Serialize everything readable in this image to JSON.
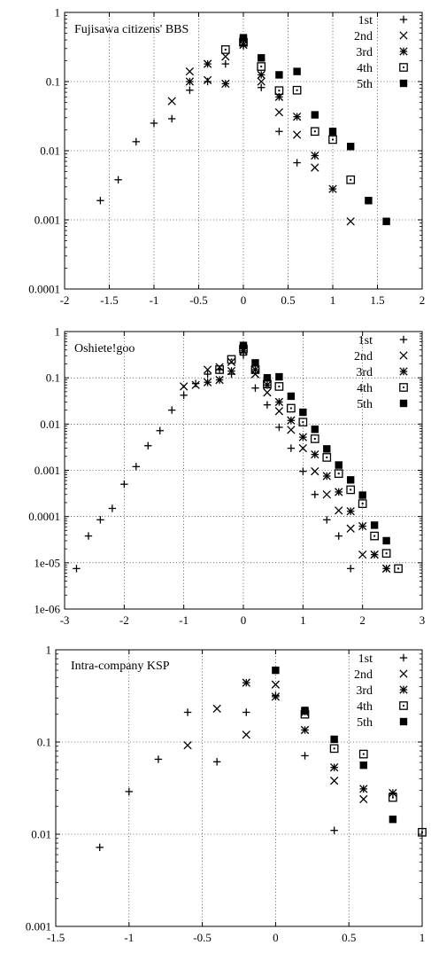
{
  "chart_data": [
    {
      "type": "scatter",
      "title": "Fujisawa citizens' BBS",
      "xlim": [
        -2,
        2
      ],
      "ylim": [
        0.0001,
        1
      ],
      "yscale": "log",
      "grid": true,
      "legend_position": "top-right",
      "xticks": [
        "-2",
        "-1.5",
        "-1",
        "-0.5",
        "0",
        "0.5",
        "1",
        "1.5",
        "2"
      ],
      "yticks": [
        "1",
        "0.1",
        "0.01",
        "0.001",
        "0.0001"
      ],
      "series": [
        {
          "name": "1st",
          "marker": "plus",
          "points": [
            [
              -1.6,
              0.0019
            ],
            [
              -1.4,
              0.0038
            ],
            [
              -1.2,
              0.0135
            ],
            [
              -1.0,
              0.025
            ],
            [
              -0.8,
              0.029
            ],
            [
              -0.6,
              0.075
            ],
            [
              -0.4,
              0.1
            ],
            [
              -0.2,
              0.18
            ],
            [
              0.0,
              0.33
            ],
            [
              0.2,
              0.082
            ],
            [
              0.4,
              0.019
            ],
            [
              0.6,
              0.0067
            ]
          ]
        },
        {
          "name": "2nd",
          "marker": "cross",
          "points": [
            [
              -0.8,
              0.052
            ],
            [
              -0.6,
              0.14
            ],
            [
              -0.4,
              0.105
            ],
            [
              -0.2,
              0.23
            ],
            [
              0.0,
              0.4
            ],
            [
              0.2,
              0.1
            ],
            [
              0.4,
              0.036
            ],
            [
              0.6,
              0.017
            ],
            [
              0.8,
              0.0057
            ],
            [
              1.2,
              0.00095
            ]
          ]
        },
        {
          "name": "3rd",
          "marker": "star",
          "points": [
            [
              -0.6,
              0.1
            ],
            [
              -0.4,
              0.18
            ],
            [
              -0.2,
              0.093
            ],
            [
              0.0,
              0.34
            ],
            [
              0.2,
              0.125
            ],
            [
              0.4,
              0.06
            ],
            [
              0.6,
              0.031
            ],
            [
              0.8,
              0.0085
            ],
            [
              1.0,
              0.0028
            ]
          ]
        },
        {
          "name": "4th",
          "marker": "box",
          "points": [
            [
              -0.2,
              0.29
            ],
            [
              0.0,
              0.37
            ],
            [
              0.2,
              0.165
            ],
            [
              0.4,
              0.074
            ],
            [
              0.6,
              0.075
            ],
            [
              0.8,
              0.019
            ],
            [
              1.0,
              0.0145
            ],
            [
              1.2,
              0.0038
            ]
          ]
        },
        {
          "name": "5th",
          "marker": "filledbox",
          "points": [
            [
              0.0,
              0.43
            ],
            [
              0.2,
              0.22
            ],
            [
              0.4,
              0.125
            ],
            [
              0.6,
              0.14
            ],
            [
              0.8,
              0.033
            ],
            [
              1.0,
              0.019
            ],
            [
              1.2,
              0.0115
            ],
            [
              1.4,
              0.0019
            ],
            [
              1.6,
              0.00095
            ]
          ]
        }
      ]
    },
    {
      "type": "scatter",
      "title": "Oshiete!goo",
      "xlim": [
        -3,
        3
      ],
      "ylim": [
        1e-06,
        1
      ],
      "yscale": "log",
      "grid": true,
      "legend_position": "top-right",
      "xticks": [
        "-3",
        "-2",
        "-1",
        "0",
        "1",
        "2",
        "3"
      ],
      "yticks": [
        "1",
        "0.1",
        "0.01",
        "0.001",
        "0.0001",
        "1e-05",
        "1e-06"
      ],
      "series": [
        {
          "name": "1st",
          "marker": "plus",
          "points": [
            [
              -2.8,
              7.5e-06
            ],
            [
              -2.6,
              3.8e-05
            ],
            [
              -2.4,
              8.5e-05
            ],
            [
              -2.2,
              0.00015
            ],
            [
              -2.0,
              0.0005
            ],
            [
              -1.8,
              0.0012
            ],
            [
              -1.6,
              0.0034
            ],
            [
              -1.4,
              0.0072
            ],
            [
              -1.2,
              0.02
            ],
            [
              -1.0,
              0.042
            ],
            [
              -0.8,
              0.075
            ],
            [
              -0.6,
              0.12
            ],
            [
              -0.4,
              0.15
            ],
            [
              -0.2,
              0.12
            ],
            [
              0.0,
              0.31
            ],
            [
              0.2,
              0.06
            ],
            [
              0.4,
              0.026
            ],
            [
              0.6,
              0.0085
            ],
            [
              0.8,
              0.003
            ],
            [
              1.0,
              0.00095
            ],
            [
              1.2,
              0.0003
            ],
            [
              1.4,
              8.5e-05
            ],
            [
              1.6,
              3.8e-05
            ],
            [
              1.8,
              7.5e-06
            ]
          ]
        },
        {
          "name": "2nd",
          "marker": "cross",
          "points": [
            [
              -1.0,
              0.065
            ],
            [
              -0.8,
              0.07
            ],
            [
              -0.6,
              0.15
            ],
            [
              -0.4,
              0.17
            ],
            [
              -0.2,
              0.22
            ],
            [
              0.0,
              0.38
            ],
            [
              0.2,
              0.12
            ],
            [
              0.4,
              0.048
            ],
            [
              0.6,
              0.019
            ],
            [
              0.8,
              0.0075
            ],
            [
              1.0,
              0.003
            ],
            [
              1.2,
              0.00095
            ],
            [
              1.4,
              0.0003
            ],
            [
              1.6,
              0.000135
            ],
            [
              1.8,
              5.5e-05
            ],
            [
              2.0,
              1.5e-05
            ],
            [
              2.2,
              1.5e-05
            ],
            [
              2.4,
              7.5e-06
            ]
          ]
        },
        {
          "name": "3rd",
          "marker": "star",
          "points": [
            [
              -0.6,
              0.08
            ],
            [
              -0.4,
              0.09
            ],
            [
              -0.2,
              0.14
            ],
            [
              0.0,
              0.38
            ],
            [
              0.2,
              0.15
            ],
            [
              0.4,
              0.07
            ],
            [
              0.6,
              0.03
            ],
            [
              0.8,
              0.012
            ],
            [
              1.0,
              0.0052
            ],
            [
              1.2,
              0.0022
            ],
            [
              1.4,
              0.00075
            ],
            [
              1.6,
              0.00034
            ],
            [
              1.8,
              0.00013
            ],
            [
              2.0,
              6.2e-05
            ],
            [
              2.2,
              1.5e-05
            ],
            [
              2.4,
              7.5e-06
            ]
          ]
        },
        {
          "name": "4th",
          "marker": "box",
          "points": [
            [
              -0.4,
              0.15
            ],
            [
              -0.2,
              0.25
            ],
            [
              0.0,
              0.42
            ],
            [
              0.2,
              0.15
            ],
            [
              0.4,
              0.073
            ],
            [
              0.6,
              0.065
            ],
            [
              0.8,
              0.022
            ],
            [
              1.0,
              0.011
            ],
            [
              1.2,
              0.0048
            ],
            [
              1.4,
              0.0019
            ],
            [
              1.6,
              0.00085
            ],
            [
              1.8,
              0.00038
            ],
            [
              2.0,
              0.00019
            ],
            [
              2.2,
              3.8e-05
            ],
            [
              2.4,
              1.6e-05
            ],
            [
              2.6,
              7.5e-06
            ]
          ]
        },
        {
          "name": "5th",
          "marker": "filledbox",
          "points": [
            [
              0.0,
              0.5
            ],
            [
              0.2,
              0.21
            ],
            [
              0.4,
              0.1
            ],
            [
              0.6,
              0.105
            ],
            [
              0.8,
              0.04
            ],
            [
              1.0,
              0.018
            ],
            [
              1.2,
              0.0077
            ],
            [
              1.4,
              0.0029
            ],
            [
              1.6,
              0.0013
            ],
            [
              1.8,
              0.00062
            ],
            [
              2.0,
              0.00029
            ],
            [
              2.2,
              6.5e-05
            ],
            [
              2.4,
              3e-05
            ]
          ]
        }
      ]
    },
    {
      "type": "scatter",
      "title": "Intra-company KSP",
      "xlim": [
        -1.5,
        1
      ],
      "ylim": [
        0.001,
        1
      ],
      "yscale": "log",
      "grid": true,
      "legend_position": "top-right",
      "xticks": [
        "-1.5",
        "-1",
        "-0.5",
        "0",
        "0.5",
        "1"
      ],
      "yticks": [
        "1",
        "0.1",
        "0.01",
        "0.001"
      ],
      "series": [
        {
          "name": "1st",
          "marker": "plus",
          "points": [
            [
              -1.2,
              0.0072
            ],
            [
              -1.0,
              0.029
            ],
            [
              -0.8,
              0.065
            ],
            [
              -0.6,
              0.21
            ],
            [
              -0.4,
              0.061
            ],
            [
              -0.2,
              0.21
            ],
            [
              0.0,
              0.32
            ],
            [
              0.2,
              0.071
            ],
            [
              0.4,
              0.011
            ]
          ]
        },
        {
          "name": "2nd",
          "marker": "cross",
          "points": [
            [
              -0.6,
              0.092
            ],
            [
              -0.4,
              0.23
            ],
            [
              -0.2,
              0.12
            ],
            [
              0.0,
              0.42
            ],
            [
              0.2,
              0.21
            ],
            [
              0.4,
              0.038
            ],
            [
              0.6,
              0.024
            ]
          ]
        },
        {
          "name": "3rd",
          "marker": "star",
          "points": [
            [
              -0.2,
              0.44
            ],
            [
              0.0,
              0.31
            ],
            [
              0.2,
              0.135
            ],
            [
              0.4,
              0.053
            ],
            [
              0.6,
              0.031
            ],
            [
              0.8,
              0.028
            ]
          ]
        },
        {
          "name": "4th",
          "marker": "box",
          "points": [
            [
              0.2,
              0.2
            ],
            [
              0.4,
              0.085
            ],
            [
              0.6,
              0.074
            ],
            [
              0.8,
              0.025
            ],
            [
              1.0,
              0.0105
            ]
          ]
        },
        {
          "name": "5th",
          "marker": "filledbox",
          "points": [
            [
              0.0,
              0.6
            ],
            [
              0.2,
              0.22
            ],
            [
              0.4,
              0.107
            ],
            [
              0.6,
              0.056
            ],
            [
              0.8,
              0.0145
            ]
          ]
        }
      ]
    }
  ]
}
